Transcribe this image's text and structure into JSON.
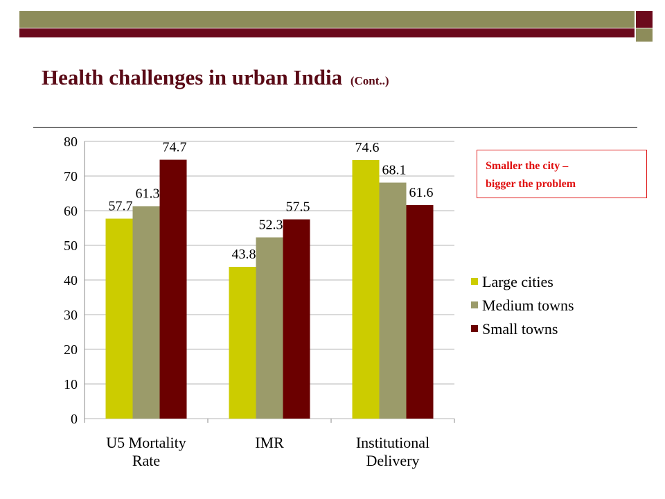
{
  "slide": {
    "title": "Health challenges in urban India",
    "title_suffix": "(Cont..)",
    "callout_line1": "Smaller the city –",
    "callout_line2": "bigger the problem"
  },
  "colors": {
    "band_olive": "#8d8c5a",
    "band_maroon": "#6b0a1c",
    "title": "#5a0a16",
    "callout_border": "#e02020",
    "callout_text": "#e01010"
  },
  "chart_data": {
    "type": "bar",
    "categories": [
      [
        "U5 Mortality",
        "Rate"
      ],
      [
        "IMR"
      ],
      [
        "Institutional",
        "Delivery"
      ]
    ],
    "series": [
      {
        "name": "Large cities",
        "color": "#cccc00",
        "values": [
          57.7,
          43.8,
          74.6
        ]
      },
      {
        "name": "Medium towns",
        "color": "#9b9b6a",
        "values": [
          61.3,
          52.3,
          68.1
        ]
      },
      {
        "name": "Small towns",
        "color": "#6b0000",
        "values": [
          74.7,
          57.5,
          61.6
        ]
      }
    ],
    "ylim": [
      0,
      80
    ],
    "yticks": [
      0,
      10,
      20,
      30,
      40,
      50,
      60,
      70,
      80
    ],
    "grid": true,
    "legend": "right",
    "data_labels": true
  }
}
